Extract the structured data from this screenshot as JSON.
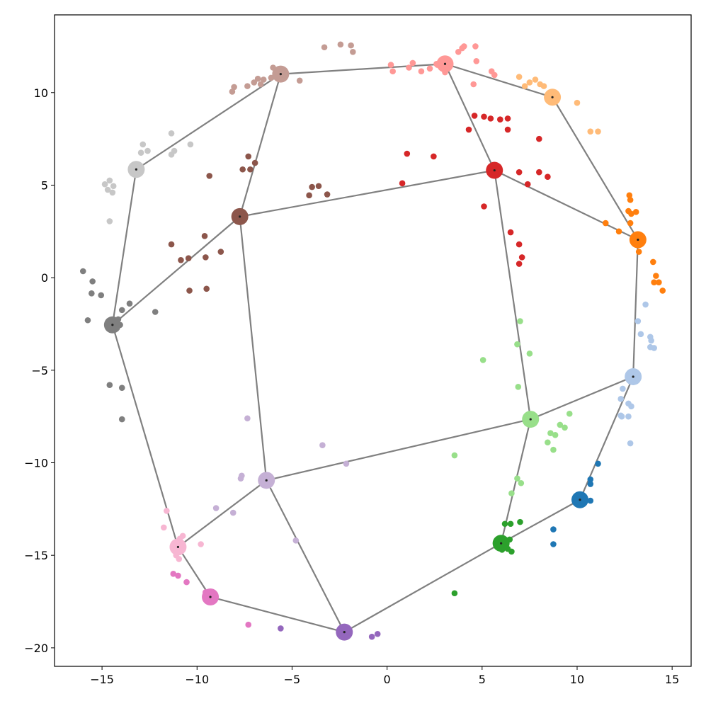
{
  "chart_data": {
    "type": "scatter",
    "title": "",
    "xlabel": "",
    "ylabel": "",
    "xlim": [
      -17.5,
      16
    ],
    "ylim": [
      -21,
      14.2
    ],
    "grid": false,
    "legend": "none",
    "x_ticks": [
      -15,
      -10,
      -5,
      0,
      5,
      10,
      15
    ],
    "x_tick_labels": [
      "−15",
      "−10",
      "−5",
      "0",
      "5",
      "10",
      "15"
    ],
    "y_ticks": [
      10,
      5,
      0,
      -5,
      -10,
      -15,
      -20
    ],
    "y_tick_labels": [
      "10",
      "5",
      "0",
      "−5",
      "−10",
      "−15",
      "−20"
    ],
    "edge_color": "#808080",
    "clusters": [
      {
        "color": "#1f77b4",
        "center": [
          10.15,
          -12.0
        ],
        "points": [
          [
            11.1,
            -10.05
          ],
          [
            10.7,
            -10.9
          ],
          [
            10.7,
            -11.15
          ],
          [
            10.7,
            -12.05
          ],
          [
            8.75,
            -13.6
          ],
          [
            8.75,
            -14.4
          ]
        ]
      },
      {
        "color": "#aec7e8",
        "center": [
          12.95,
          -5.35
        ],
        "points": [
          [
            13.6,
            -1.45
          ],
          [
            13.2,
            -2.35
          ],
          [
            13.35,
            -3.05
          ],
          [
            13.85,
            -3.2
          ],
          [
            13.9,
            -3.4
          ],
          [
            13.85,
            -3.75
          ],
          [
            14.05,
            -3.8
          ],
          [
            12.4,
            -6.0
          ],
          [
            12.3,
            -6.55
          ],
          [
            12.7,
            -6.8
          ],
          [
            12.85,
            -6.95
          ],
          [
            12.3,
            -7.45
          ],
          [
            12.35,
            -7.5
          ],
          [
            12.7,
            -7.5
          ],
          [
            12.8,
            -8.95
          ]
        ]
      },
      {
        "color": "#ff7f0e",
        "center": [
          13.2,
          2.05
        ],
        "points": [
          [
            12.75,
            4.45
          ],
          [
            12.8,
            4.2
          ],
          [
            12.7,
            3.6
          ],
          [
            12.85,
            3.45
          ],
          [
            13.1,
            3.55
          ],
          [
            12.8,
            2.95
          ],
          [
            11.5,
            2.95
          ],
          [
            12.2,
            2.5
          ],
          [
            13.25,
            1.4
          ],
          [
            14.0,
            0.85
          ],
          [
            14.15,
            0.1
          ],
          [
            14.05,
            -0.25
          ],
          [
            14.3,
            -0.25
          ],
          [
            14.5,
            -0.7
          ]
        ]
      },
      {
        "color": "#ffbb78",
        "center": [
          8.7,
          9.75
        ],
        "points": [
          [
            6.95,
            10.85
          ],
          [
            7.5,
            10.55
          ],
          [
            7.8,
            10.7
          ],
          [
            7.25,
            10.35
          ],
          [
            8.05,
            10.45
          ],
          [
            8.25,
            10.35
          ],
          [
            10.0,
            9.45
          ],
          [
            10.7,
            7.9
          ],
          [
            11.1,
            7.9
          ]
        ]
      },
      {
        "color": "#2ca02c",
        "center": [
          6.0,
          -14.35
        ],
        "points": [
          [
            6.2,
            -13.3
          ],
          [
            6.5,
            -13.3
          ],
          [
            7.0,
            -13.2
          ],
          [
            6.0,
            -14.2
          ],
          [
            6.45,
            -14.15
          ],
          [
            6.2,
            -14.35
          ],
          [
            6.1,
            -14.55
          ],
          [
            6.05,
            -14.7
          ],
          [
            6.35,
            -14.65
          ],
          [
            6.55,
            -14.8
          ],
          [
            3.55,
            -17.05
          ]
        ]
      },
      {
        "color": "#98df8a",
        "center": [
          7.55,
          -7.65
        ],
        "points": [
          [
            7.0,
            -2.35
          ],
          [
            6.85,
            -3.6
          ],
          [
            7.5,
            -4.1
          ],
          [
            5.05,
            -4.45
          ],
          [
            6.9,
            -5.9
          ],
          [
            9.6,
            -7.35
          ],
          [
            9.1,
            -7.95
          ],
          [
            9.35,
            -8.1
          ],
          [
            8.6,
            -8.4
          ],
          [
            8.85,
            -8.5
          ],
          [
            8.45,
            -8.9
          ],
          [
            8.75,
            -9.3
          ],
          [
            3.55,
            -9.6
          ],
          [
            6.85,
            -10.85
          ],
          [
            7.05,
            -11.1
          ],
          [
            6.55,
            -11.65
          ]
        ]
      },
      {
        "color": "#d62728",
        "center": [
          5.65,
          5.8
        ],
        "points": [
          [
            4.6,
            8.75
          ],
          [
            5.1,
            8.7
          ],
          [
            5.45,
            8.6
          ],
          [
            5.95,
            8.55
          ],
          [
            6.35,
            8.6
          ],
          [
            4.3,
            8.0
          ],
          [
            6.35,
            8.0
          ],
          [
            8.0,
            7.5
          ],
          [
            1.05,
            6.7
          ],
          [
            2.45,
            6.55
          ],
          [
            6.95,
            5.7
          ],
          [
            8.0,
            5.7
          ],
          [
            8.45,
            5.45
          ],
          [
            0.8,
            5.1
          ],
          [
            7.4,
            5.05
          ],
          [
            5.1,
            3.85
          ],
          [
            6.5,
            2.45
          ],
          [
            6.95,
            1.8
          ],
          [
            7.1,
            1.1
          ],
          [
            6.95,
            0.75
          ]
        ]
      },
      {
        "color": "#ff9896",
        "center": [
          3.05,
          11.55
        ],
        "points": [
          [
            3.75,
            12.2
          ],
          [
            3.95,
            12.4
          ],
          [
            4.05,
            12.5
          ],
          [
            4.65,
            12.5
          ],
          [
            4.7,
            11.7
          ],
          [
            5.5,
            11.15
          ],
          [
            5.65,
            10.95
          ],
          [
            4.55,
            10.45
          ],
          [
            0.2,
            11.5
          ],
          [
            1.35,
            11.6
          ],
          [
            2.6,
            11.55
          ],
          [
            2.65,
            11.5
          ],
          [
            1.15,
            11.35
          ],
          [
            1.8,
            11.15
          ],
          [
            0.3,
            11.15
          ],
          [
            2.25,
            11.3
          ],
          [
            3.05,
            11.1
          ]
        ]
      },
      {
        "color": "#9467bd",
        "center": [
          -2.25,
          -19.15
        ],
        "points": [
          [
            -5.6,
            -18.95
          ],
          [
            -0.8,
            -19.4
          ],
          [
            -0.5,
            -19.25
          ]
        ]
      },
      {
        "color": "#c5b0d5",
        "center": [
          -6.35,
          -10.95
        ],
        "points": [
          [
            -7.35,
            -7.6
          ],
          [
            -3.4,
            -9.05
          ],
          [
            -2.15,
            -10.05
          ],
          [
            -7.65,
            -10.7
          ],
          [
            -7.7,
            -10.85
          ],
          [
            -9.0,
            -12.45
          ],
          [
            -8.1,
            -12.7
          ],
          [
            -4.8,
            -14.2
          ]
        ]
      },
      {
        "color": "#8c564b",
        "center": [
          -7.75,
          3.3
        ],
        "points": [
          [
            -7.3,
            6.55
          ],
          [
            -6.95,
            6.2
          ],
          [
            -7.2,
            5.85
          ],
          [
            -7.6,
            5.85
          ],
          [
            -9.35,
            5.5
          ],
          [
            -3.95,
            4.9
          ],
          [
            -3.6,
            4.95
          ],
          [
            -4.1,
            4.45
          ],
          [
            -3.15,
            4.5
          ],
          [
            -9.6,
            2.25
          ],
          [
            -11.35,
            1.8
          ],
          [
            -8.75,
            1.4
          ],
          [
            -9.55,
            1.1
          ],
          [
            -10.45,
            1.05
          ],
          [
            -10.85,
            0.95
          ],
          [
            -9.5,
            -0.6
          ],
          [
            -10.4,
            -0.7
          ]
        ]
      },
      {
        "color": "#c49c94",
        "center": [
          -5.6,
          11.0
        ],
        "points": [
          [
            -3.3,
            12.45
          ],
          [
            -2.45,
            12.6
          ],
          [
            -1.9,
            12.55
          ],
          [
            -1.8,
            12.2
          ],
          [
            -6.0,
            11.35
          ],
          [
            -5.8,
            11.2
          ],
          [
            -5.55,
            11.05
          ],
          [
            -5.4,
            10.9
          ],
          [
            -6.1,
            10.8
          ],
          [
            -6.5,
            10.7
          ],
          [
            -6.8,
            10.75
          ],
          [
            -7.0,
            10.55
          ],
          [
            -6.65,
            10.45
          ],
          [
            -4.6,
            10.65
          ],
          [
            -7.35,
            10.35
          ],
          [
            -8.05,
            10.3
          ],
          [
            -8.15,
            10.05
          ]
        ]
      },
      {
        "color": "#e377c2",
        "center": [
          -9.3,
          -17.25
        ],
        "points": [
          [
            -10.55,
            -16.45
          ],
          [
            -11.0,
            -16.1
          ],
          [
            -11.25,
            -16.0
          ],
          [
            -9.55,
            -17.0
          ],
          [
            -9.3,
            -17.1
          ],
          [
            -7.3,
            -18.75
          ]
        ]
      },
      {
        "color": "#f7b6d2",
        "center": [
          -11.0,
          -14.55
        ],
        "points": [
          [
            -11.6,
            -12.6
          ],
          [
            -11.75,
            -13.5
          ],
          [
            -10.75,
            -13.95
          ],
          [
            -10.9,
            -14.1
          ],
          [
            -11.1,
            -14.4
          ],
          [
            -9.8,
            -14.4
          ],
          [
            -11.0,
            -14.75
          ],
          [
            -11.1,
            -15.0
          ],
          [
            -10.95,
            -15.2
          ]
        ]
      },
      {
        "color": "#7f7f7f",
        "center": [
          -14.45,
          -2.55
        ],
        "points": [
          [
            -16.0,
            0.35
          ],
          [
            -15.5,
            -0.2
          ],
          [
            -15.55,
            -0.85
          ],
          [
            -15.05,
            -0.95
          ],
          [
            -13.55,
            -1.4
          ],
          [
            -13.95,
            -1.75
          ],
          [
            -12.2,
            -1.85
          ],
          [
            -14.15,
            -2.25
          ],
          [
            -14.65,
            -2.35
          ],
          [
            -15.75,
            -2.3
          ],
          [
            -14.05,
            -2.55
          ],
          [
            -14.6,
            -5.8
          ],
          [
            -13.95,
            -5.95
          ],
          [
            -13.95,
            -7.65
          ]
        ]
      },
      {
        "color": "#c7c7c7",
        "center": [
          -13.2,
          5.85
        ],
        "points": [
          [
            -11.35,
            7.8
          ],
          [
            -10.35,
            7.2
          ],
          [
            -12.85,
            7.2
          ],
          [
            -12.6,
            6.85
          ],
          [
            -12.95,
            6.75
          ],
          [
            -11.2,
            6.85
          ],
          [
            -11.35,
            6.65
          ],
          [
            -14.6,
            5.25
          ],
          [
            -14.85,
            5.05
          ],
          [
            -14.4,
            4.95
          ],
          [
            -14.7,
            4.75
          ],
          [
            -14.45,
            4.6
          ],
          [
            -14.6,
            3.05
          ]
        ]
      }
    ],
    "edges": [
      [
        0,
        1
      ],
      [
        0,
        4
      ],
      [
        1,
        2
      ],
      [
        1,
        5
      ],
      [
        2,
        3
      ],
      [
        2,
        6
      ],
      [
        3,
        7
      ],
      [
        4,
        5
      ],
      [
        4,
        8
      ],
      [
        5,
        6
      ],
      [
        5,
        9
      ],
      [
        6,
        7
      ],
      [
        6,
        10
      ],
      [
        7,
        11
      ],
      [
        8,
        9
      ],
      [
        8,
        12
      ],
      [
        9,
        10
      ],
      [
        9,
        13
      ],
      [
        10,
        11
      ],
      [
        10,
        14
      ],
      [
        11,
        15
      ],
      [
        12,
        13
      ],
      [
        13,
        14
      ],
      [
        14,
        15
      ]
    ]
  }
}
